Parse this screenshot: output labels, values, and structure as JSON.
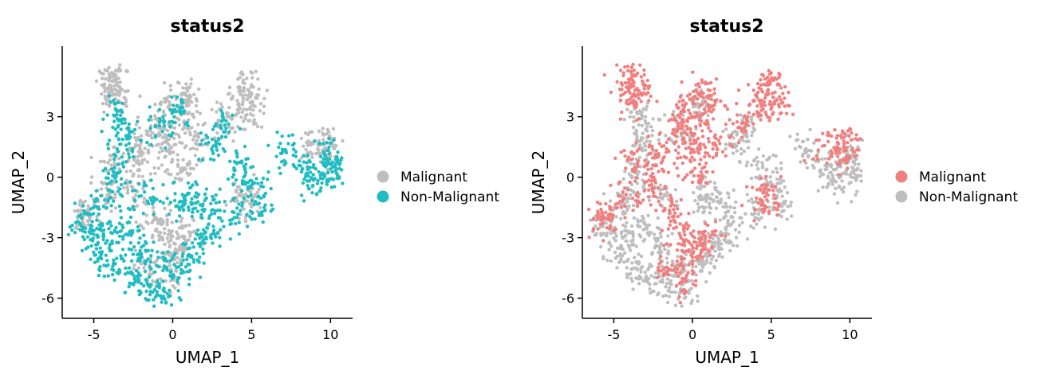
{
  "chart_data": [
    {
      "type": "scatter",
      "title": "status2",
      "xlabel": "UMAP_1",
      "ylabel": "UMAP_2",
      "xlim": [
        -7,
        11.4
      ],
      "ylim": [
        -7,
        6.5
      ],
      "x_ticks": [
        -5,
        0,
        5,
        10
      ],
      "y_ticks": [
        -6,
        -3,
        0,
        3
      ],
      "grid": false,
      "legend_position": "right",
      "legend": [
        {
          "name": "Malignant",
          "color": "#BEBEBE"
        },
        {
          "name": "Non-Malignant",
          "color": "#1FBCC1"
        }
      ],
      "highlight_series": "Non-Malignant",
      "series": [
        {
          "name": "Malignant",
          "color": "#BEBEBE",
          "points": [
            [
              -3.9,
              5.0
            ],
            [
              -3.6,
              4.6
            ],
            [
              -4.0,
              4.2
            ],
            [
              -3.5,
              3.9
            ],
            [
              0.5,
              4.2
            ],
            [
              1.0,
              3.7
            ],
            [
              -0.5,
              3.5
            ],
            [
              0.8,
              2.8
            ],
            [
              -1.0,
              2.5
            ],
            [
              0.0,
              1.8
            ],
            [
              1.5,
              1.6
            ],
            [
              -0.5,
              1.0
            ],
            [
              0.6,
              0.4
            ],
            [
              -2.0,
              1.5
            ],
            [
              -2.5,
              0.5
            ],
            [
              4.6,
              4.6
            ],
            [
              4.9,
              4.0
            ],
            [
              5.2,
              3.3
            ],
            [
              4.1,
              3.6
            ],
            [
              3.2,
              2.7
            ],
            [
              8.6,
              1.5
            ],
            [
              9.5,
              1.2
            ],
            [
              10.0,
              1.8
            ],
            [
              -5.5,
              -1.8
            ],
            [
              -5.8,
              -2.0
            ],
            [
              -1.2,
              -1.7
            ],
            [
              -0.8,
              -2.6
            ],
            [
              -0.3,
              -3.8
            ],
            [
              -1.6,
              -4.5
            ],
            [
              -0.5,
              -5.0
            ],
            [
              0.4,
              -3.4
            ],
            [
              0.9,
              -2.9
            ],
            [
              4.4,
              -0.8
            ],
            [
              4.9,
              -1.2
            ],
            [
              -2.6,
              -0.7
            ],
            [
              -3.8,
              0.8
            ],
            [
              -4.4,
              -1.0
            ]
          ]
        },
        {
          "name": "Non-Malignant",
          "color": "#1FBCC1",
          "points": [
            [
              -3.4,
              3.1
            ],
            [
              -2.8,
              2.2
            ],
            [
              -3.3,
              1.2
            ],
            [
              -3.6,
              -0.2
            ],
            [
              -4.6,
              -1.3
            ],
            [
              -5.7,
              -2.3
            ],
            [
              -5.2,
              -3.0
            ],
            [
              -4.5,
              -3.8
            ],
            [
              -3.5,
              -4.6
            ],
            [
              -2.5,
              -5.1
            ],
            [
              -1.5,
              -5.7
            ],
            [
              -0.5,
              -6.0
            ],
            [
              -1.0,
              -4.4
            ],
            [
              -2.0,
              -3.5
            ],
            [
              0.2,
              -4.5
            ],
            [
              1.0,
              -4.0
            ],
            [
              1.7,
              -3.3
            ],
            [
              2.4,
              -2.6
            ],
            [
              2.1,
              -1.5
            ],
            [
              1.2,
              -1.0
            ],
            [
              0.5,
              -1.2
            ],
            [
              -1.8,
              -1.0
            ],
            [
              -3.0,
              -2.5
            ],
            [
              -4.0,
              -2.8
            ],
            [
              0.3,
              3.5
            ],
            [
              -0.6,
              2.6
            ],
            [
              3.3,
              2.5
            ],
            [
              2.5,
              1.6
            ],
            [
              4.3,
              0.6
            ],
            [
              5.0,
              -0.2
            ],
            [
              7.1,
              1.4
            ],
            [
              8.3,
              0.4
            ],
            [
              9.0,
              -0.1
            ],
            [
              9.6,
              0.5
            ],
            [
              10.1,
              1.1
            ],
            [
              10.3,
              0.2
            ],
            [
              5.5,
              -1.4
            ],
            [
              4.1,
              -1.8
            ]
          ]
        }
      ]
    },
    {
      "type": "scatter",
      "title": "status2",
      "xlabel": "UMAP_1",
      "ylabel": "UMAP_2",
      "xlim": [
        -7,
        11.4
      ],
      "ylim": [
        -7,
        6.5
      ],
      "x_ticks": [
        -5,
        0,
        5,
        10
      ],
      "y_ticks": [
        -6,
        -3,
        0,
        3
      ],
      "grid": false,
      "legend_position": "right",
      "legend": [
        {
          "name": "Malignant",
          "color": "#F08080"
        },
        {
          "name": "Non-Malignant",
          "color": "#BEBEBE"
        }
      ],
      "highlight_series": "Malignant",
      "series": [
        {
          "name": "Malignant",
          "color": "#F08080",
          "points": [
            [
              -3.9,
              5.0
            ],
            [
              -3.6,
              4.6
            ],
            [
              -4.0,
              4.2
            ],
            [
              -3.5,
              3.9
            ],
            [
              0.5,
              4.2
            ],
            [
              1.0,
              3.7
            ],
            [
              -0.5,
              3.5
            ],
            [
              0.8,
              2.8
            ],
            [
              -1.0,
              2.5
            ],
            [
              0.0,
              1.8
            ],
            [
              1.5,
              1.6
            ],
            [
              -0.5,
              1.0
            ],
            [
              0.6,
              0.4
            ],
            [
              -2.0,
              1.5
            ],
            [
              -2.5,
              0.5
            ],
            [
              4.6,
              4.6
            ],
            [
              4.9,
              4.0
            ],
            [
              5.2,
              3.3
            ],
            [
              4.1,
              3.6
            ],
            [
              3.2,
              2.7
            ],
            [
              8.6,
              1.5
            ],
            [
              9.5,
              1.2
            ],
            [
              10.0,
              1.8
            ],
            [
              -5.5,
              -1.8
            ],
            [
              -5.8,
              -2.0
            ],
            [
              -1.2,
              -1.7
            ],
            [
              -0.8,
              -2.6
            ],
            [
              -0.3,
              -3.8
            ],
            [
              -1.6,
              -4.5
            ],
            [
              -0.5,
              -5.0
            ],
            [
              0.4,
              -3.4
            ],
            [
              0.9,
              -2.9
            ],
            [
              4.4,
              -0.8
            ],
            [
              4.9,
              -1.2
            ],
            [
              -2.6,
              -0.7
            ],
            [
              -3.8,
              0.8
            ],
            [
              -4.4,
              -1.0
            ]
          ]
        },
        {
          "name": "Non-Malignant",
          "color": "#BEBEBE",
          "points": [
            [
              -3.4,
              3.1
            ],
            [
              -2.8,
              2.2
            ],
            [
              -3.3,
              1.2
            ],
            [
              -3.6,
              -0.2
            ],
            [
              -4.6,
              -1.3
            ],
            [
              -5.7,
              -2.3
            ],
            [
              -5.2,
              -3.0
            ],
            [
              -4.5,
              -3.8
            ],
            [
              -3.5,
              -4.6
            ],
            [
              -2.5,
              -5.1
            ],
            [
              -1.5,
              -5.7
            ],
            [
              -0.5,
              -6.0
            ],
            [
              -1.0,
              -4.4
            ],
            [
              -2.0,
              -3.5
            ],
            [
              0.2,
              -4.5
            ],
            [
              1.0,
              -4.0
            ],
            [
              1.7,
              -3.3
            ],
            [
              2.4,
              -2.6
            ],
            [
              2.1,
              -1.5
            ],
            [
              1.2,
              -1.0
            ],
            [
              0.5,
              -1.2
            ],
            [
              -1.8,
              -1.0
            ],
            [
              -3.0,
              -2.5
            ],
            [
              -4.0,
              -2.8
            ],
            [
              0.3,
              3.5
            ],
            [
              -0.6,
              2.6
            ],
            [
              3.3,
              2.5
            ],
            [
              2.5,
              1.6
            ],
            [
              4.3,
              0.6
            ],
            [
              5.0,
              -0.2
            ],
            [
              7.1,
              1.4
            ],
            [
              8.3,
              0.4
            ],
            [
              9.0,
              -0.1
            ],
            [
              9.6,
              0.5
            ],
            [
              10.1,
              1.1
            ],
            [
              10.3,
              0.2
            ],
            [
              5.5,
              -1.4
            ],
            [
              4.1,
              -1.8
            ]
          ]
        }
      ]
    }
  ]
}
